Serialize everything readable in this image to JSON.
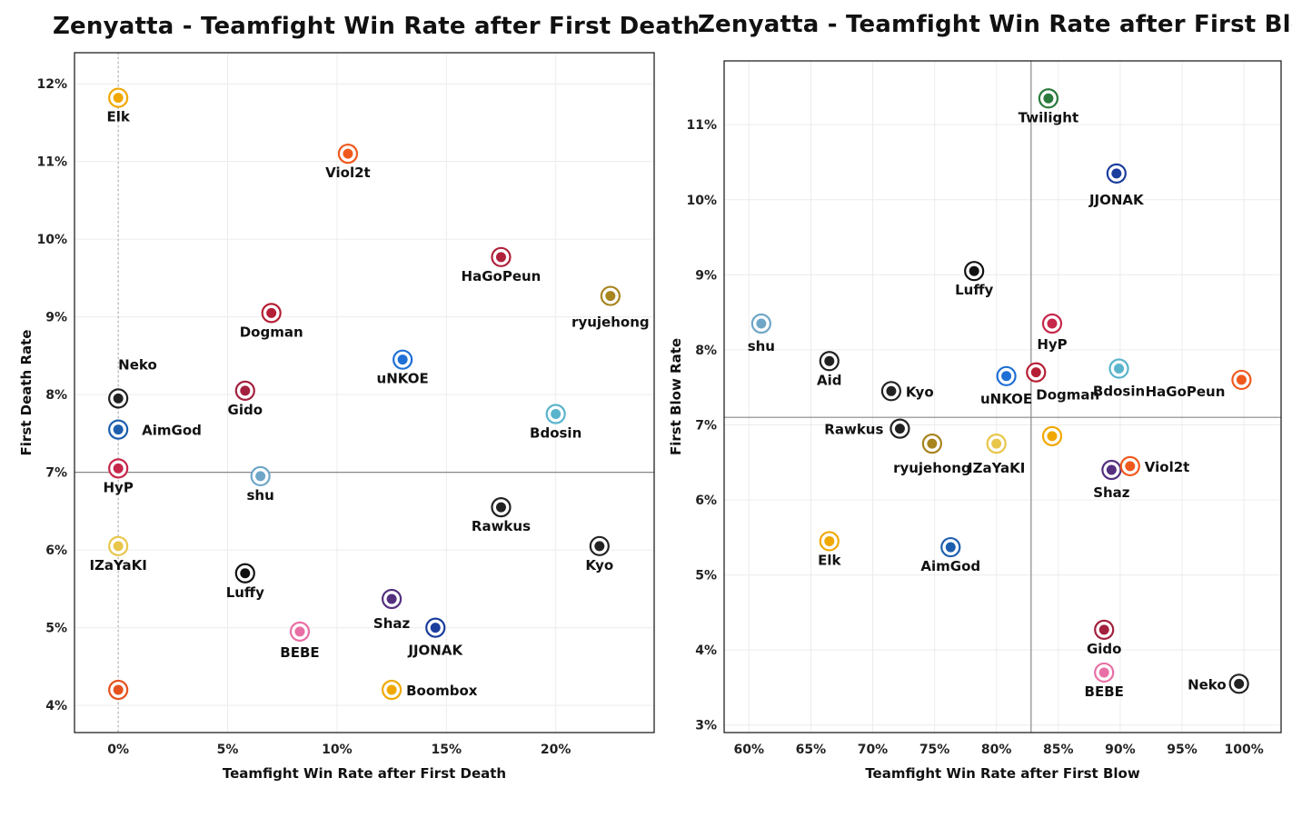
{
  "chart_data": [
    {
      "type": "scatter",
      "title": "Zenyatta - Teamfight Win Rate after First Death",
      "xlabel": "Teamfight Win Rate after First Death",
      "ylabel": "First Death Rate",
      "xlim": [
        -2,
        24.5
      ],
      "ylim": [
        3.65,
        12.4
      ],
      "xticks": [
        0,
        5,
        10,
        15,
        20
      ],
      "xtick_labels": [
        "0%",
        "5%",
        "10%",
        "15%",
        "20%"
      ],
      "yticks": [
        4,
        5,
        6,
        7,
        8,
        9,
        10,
        11,
        12
      ],
      "ytick_labels": [
        "4%",
        "5%",
        "6%",
        "7%",
        "8%",
        "9%",
        "10%",
        "11%",
        "12%"
      ],
      "grid": true,
      "vline": 0,
      "hline": 7.0,
      "points": [
        {
          "label": "Elk",
          "x": 0.0,
          "y": 11.82,
          "color": "#f0a800"
        },
        {
          "label": "Viol2t",
          "x": 10.5,
          "y": 11.1,
          "color": "#f0591e"
        },
        {
          "label": "HaGoPeun",
          "x": 17.5,
          "y": 9.77,
          "color": "#b0203a"
        },
        {
          "label": "ryujehong",
          "x": 22.5,
          "y": 9.27,
          "color": "#a8841e"
        },
        {
          "label": "Dogman",
          "x": 7.0,
          "y": 9.05,
          "color": "#b51f35"
        },
        {
          "label": "uNKOE",
          "x": 13.0,
          "y": 8.45,
          "color": "#1f6fd6"
        },
        {
          "label": "Neko",
          "x": 0.0,
          "y": 7.95,
          "color": "#222222"
        },
        {
          "label": "AimGod",
          "x": 0.0,
          "y": 7.55,
          "color": "#1d5fae"
        },
        {
          "label": "Gido",
          "x": 5.8,
          "y": 8.05,
          "color": "#a3213e"
        },
        {
          "label": "Bdosin",
          "x": 20.0,
          "y": 7.75,
          "color": "#5ab4cc"
        },
        {
          "label": "HyP",
          "x": 0.0,
          "y": 7.05,
          "color": "#c6274a"
        },
        {
          "label": "shu",
          "x": 6.5,
          "y": 6.95,
          "color": "#6fa6c7"
        },
        {
          "label": "Rawkus",
          "x": 17.5,
          "y": 6.55,
          "color": "#222222"
        },
        {
          "label": "IZaYaKI",
          "x": 0.0,
          "y": 6.05,
          "color": "#e8c64a"
        },
        {
          "label": "Kyo",
          "x": 22.0,
          "y": 6.05,
          "color": "#222222"
        },
        {
          "label": "Luffy",
          "x": 5.8,
          "y": 5.7,
          "color": "#111111"
        },
        {
          "label": "Shaz",
          "x": 12.5,
          "y": 5.37,
          "color": "#54307f"
        },
        {
          "label": "JJONAK",
          "x": 14.5,
          "y": 5.0,
          "color": "#1b3d9c"
        },
        {
          "label": "BEBE",
          "x": 8.3,
          "y": 4.95,
          "color": "#e86fa5"
        },
        {
          "label": "Boombox",
          "x": 12.5,
          "y": 4.2,
          "color": "#f0a800"
        },
        {
          "label": "",
          "x": 0.0,
          "y": 4.2,
          "color": "#e5521f"
        }
      ]
    },
    {
      "type": "scatter",
      "title": "Zenyatta - Teamfight Win Rate after First Blow",
      "xlabel": "Teamfight Win Rate after First Blow",
      "ylabel": "First Blow Rate",
      "xlim": [
        58,
        103
      ],
      "ylim": [
        2.9,
        11.85
      ],
      "xticks": [
        60,
        65,
        70,
        75,
        80,
        85,
        90,
        95,
        100
      ],
      "xtick_labels": [
        "60%",
        "65%",
        "70%",
        "75%",
        "80%",
        "85%",
        "90%",
        "95%",
        "100%"
      ],
      "yticks": [
        3,
        4,
        5,
        6,
        7,
        8,
        9,
        10,
        11
      ],
      "ytick_labels": [
        "3%",
        "4%",
        "5%",
        "6%",
        "7%",
        "8%",
        "9%",
        "10%",
        "11%"
      ],
      "grid": true,
      "vline": 82.8,
      "hline": 7.1,
      "points": [
        {
          "label": "Twilight",
          "x": 84.2,
          "y": 11.35,
          "color": "#2a7a3c"
        },
        {
          "label": "JJONAK",
          "x": 89.7,
          "y": 10.35,
          "color": "#1b3d9c"
        },
        {
          "label": "Luffy",
          "x": 78.2,
          "y": 9.05,
          "color": "#111111"
        },
        {
          "label": "shu",
          "x": 61.0,
          "y": 8.35,
          "color": "#6fa6c7"
        },
        {
          "label": "HyP",
          "x": 84.5,
          "y": 8.35,
          "color": "#c6274a"
        },
        {
          "label": "Aid",
          "x": 66.5,
          "y": 7.85,
          "color": "#222222"
        },
        {
          "label": "uNKOE",
          "x": 80.8,
          "y": 7.65,
          "color": "#1f6fd6"
        },
        {
          "label": "Dogman",
          "x": 83.2,
          "y": 7.7,
          "color": "#b51f35"
        },
        {
          "label": "Bdosin",
          "x": 89.9,
          "y": 7.75,
          "color": "#5ab4cc"
        },
        {
          "label": "HaGoPeun",
          "x": 99.8,
          "y": 7.6,
          "color": "#f0591e"
        },
        {
          "label": "Kyo",
          "x": 71.5,
          "y": 7.45,
          "color": "#222222"
        },
        {
          "label": "Rawkus",
          "x": 72.2,
          "y": 6.95,
          "color": "#222222"
        },
        {
          "label": "ryujehong",
          "x": 74.8,
          "y": 6.75,
          "color": "#a8841e"
        },
        {
          "label": "IZaYaKI",
          "x": 80.0,
          "y": 6.75,
          "color": "#e8c64a"
        },
        {
          "label": "",
          "x": 84.5,
          "y": 6.85,
          "color": "#f0a800"
        },
        {
          "label": "Shaz",
          "x": 89.3,
          "y": 6.4,
          "color": "#54307f"
        },
        {
          "label": "Viol2t",
          "x": 90.8,
          "y": 6.45,
          "color": "#f0591e"
        },
        {
          "label": "Elk",
          "x": 66.5,
          "y": 5.45,
          "color": "#f0a800"
        },
        {
          "label": "AimGod",
          "x": 76.3,
          "y": 5.37,
          "color": "#1d5fae"
        },
        {
          "label": "Gido",
          "x": 88.7,
          "y": 4.27,
          "color": "#a3213e"
        },
        {
          "label": "BEBE",
          "x": 88.7,
          "y": 3.7,
          "color": "#e86fa5"
        },
        {
          "label": "Neko",
          "x": 99.6,
          "y": 3.55,
          "color": "#222222"
        }
      ]
    }
  ]
}
